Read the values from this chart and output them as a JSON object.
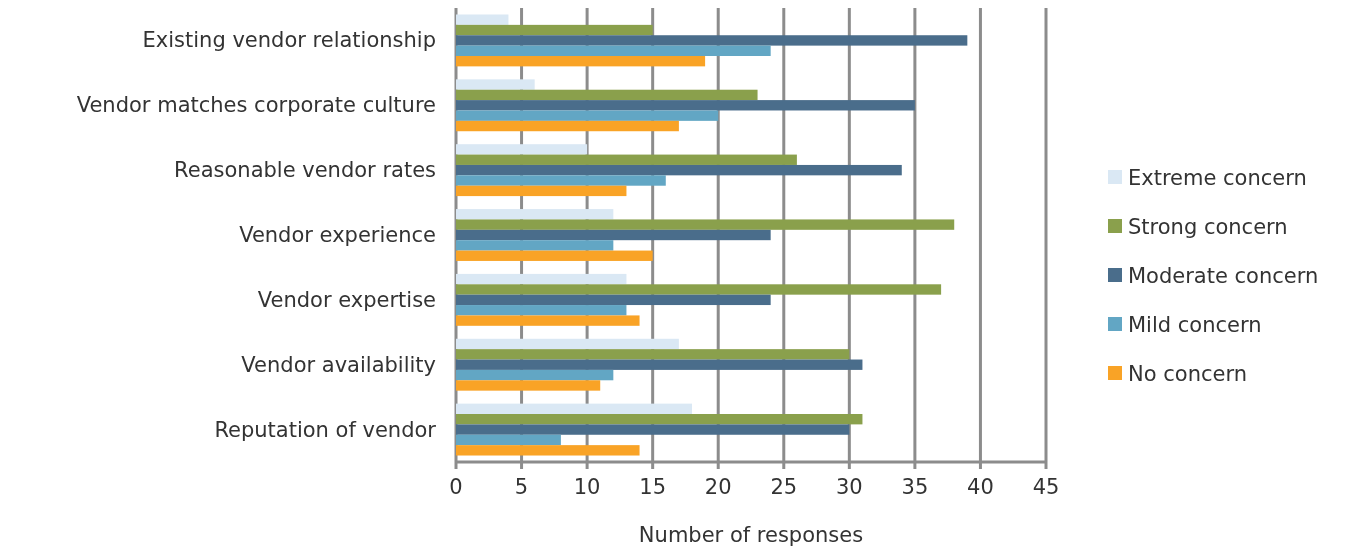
{
  "chart_data": {
    "type": "bar",
    "orientation": "horizontal",
    "xlabel": "Number of responses",
    "categories": [
      "Existing vendor relationship",
      "Vendor matches corporate culture",
      "Reasonable vendor rates",
      "Vendor experience",
      "Vendor expertise",
      "Vendor availability",
      "Reputation of vendor"
    ],
    "series": [
      {
        "name": "Extreme concern",
        "color": "#dae8f4",
        "values": [
          4,
          6,
          10,
          12,
          13,
          17,
          18
        ]
      },
      {
        "name": "Strong concern",
        "color": "#8aa04c",
        "values": [
          15,
          23,
          26,
          38,
          37,
          30,
          31
        ]
      },
      {
        "name": "Moderate concern",
        "color": "#4a6d8b",
        "values": [
          39,
          35,
          34,
          24,
          24,
          31,
          30
        ]
      },
      {
        "name": "Mild concern",
        "color": "#62a6c4",
        "values": [
          24,
          20,
          16,
          12,
          13,
          12,
          8
        ]
      },
      {
        "name": "No concern",
        "color": "#f9a326",
        "values": [
          19,
          17,
          13,
          15,
          14,
          11,
          14
        ]
      }
    ],
    "xlim": [
      0,
      45
    ],
    "xticks": [
      0,
      5,
      10,
      15,
      20,
      25,
      30,
      35,
      40,
      45
    ],
    "grid": "x",
    "legend": "right"
  }
}
